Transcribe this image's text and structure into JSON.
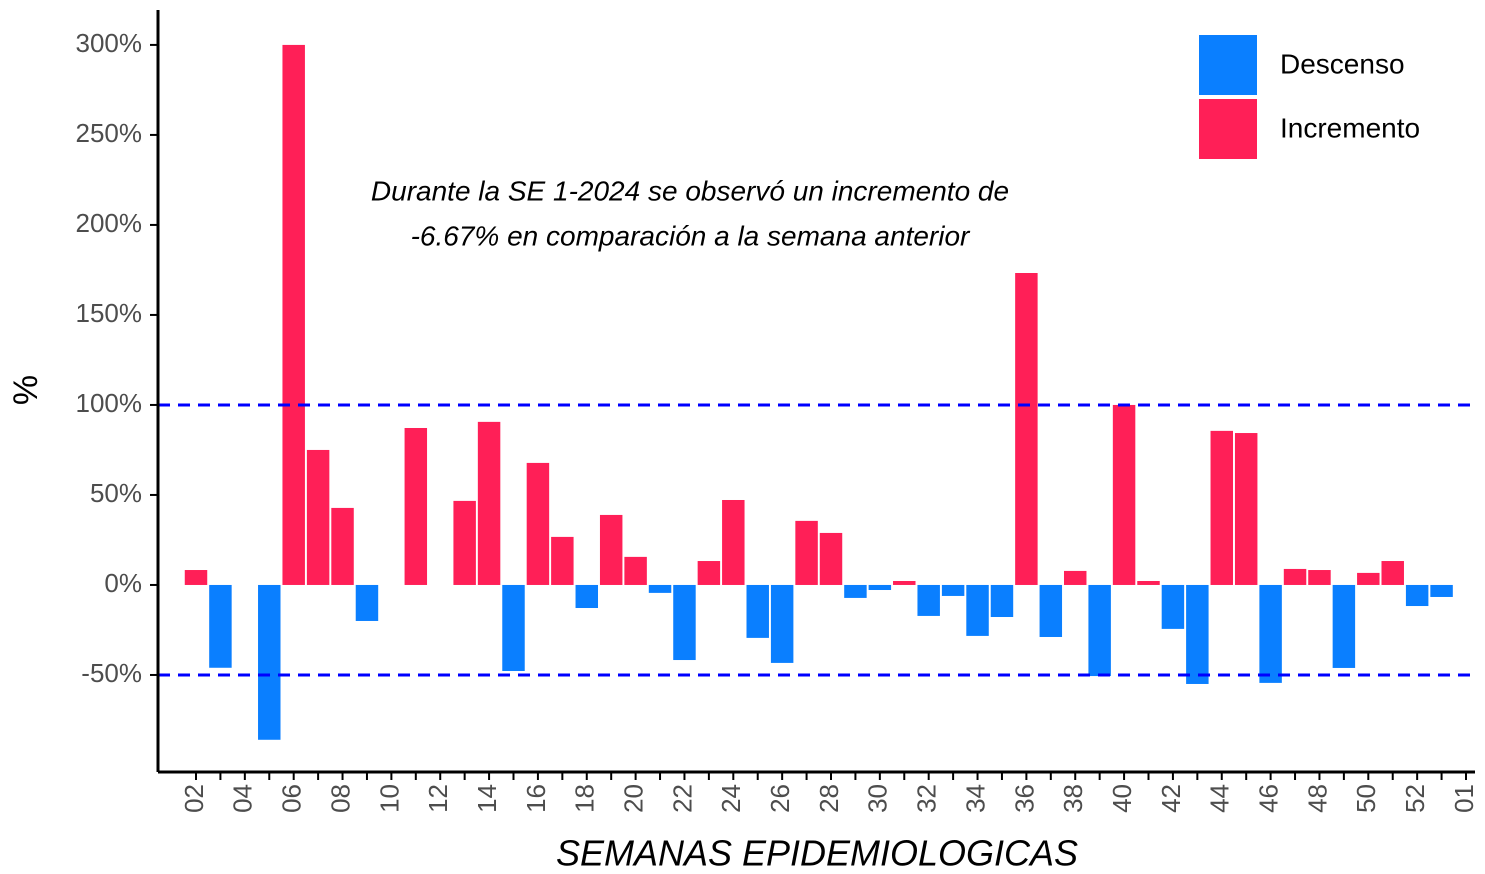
{
  "chart_data": {
    "type": "bar",
    "annotation": [
      "Durante la  SE 1-2024 se observó un incremento de",
      "-6.67% en comparación a la semana anterior"
    ],
    "x_label": "SEMANAS EPIDEMIOLOGICAS",
    "y_label": "%",
    "categories": [
      "02",
      null,
      "04",
      null,
      "06",
      null,
      "08",
      null,
      "10",
      null,
      "12",
      null,
      "14",
      null,
      "16",
      null,
      "18",
      null,
      "20",
      null,
      "22",
      null,
      "24",
      null,
      "26",
      null,
      "28",
      null,
      "30",
      null,
      "32",
      null,
      "34",
      null,
      "36",
      null,
      "38",
      null,
      "40",
      null,
      "42",
      null,
      "44",
      null,
      "46",
      null,
      "48",
      null,
      "50",
      null,
      "52",
      null,
      "01"
    ],
    "series": [
      {
        "name": "Descenso",
        "color": "#0A7FFF",
        "values": [
          null,
          -46,
          null,
          -86,
          null,
          null,
          null,
          -20,
          null,
          null,
          null,
          null,
          null,
          -47.8,
          null,
          null,
          -12.8,
          null,
          null,
          -4.4,
          -41.7,
          null,
          null,
          -29.4,
          -43.3,
          null,
          null,
          -7.2,
          -2.8,
          null,
          -17.2,
          -6.1,
          -28.3,
          -17.8,
          null,
          -28.9,
          null,
          -50.6,
          null,
          null,
          -24.4,
          -55,
          null,
          null,
          -54.4,
          null,
          null,
          -46.1,
          null,
          null,
          -11.7,
          -6.67,
          null
        ]
      },
      {
        "name": "Incremento",
        "color": "#FF1F57",
        "values": [
          8.3,
          null,
          0,
          null,
          300,
          75,
          42.8,
          null,
          0,
          87.2,
          0,
          46.7,
          90.6,
          null,
          67.8,
          26.7,
          null,
          38.9,
          15.6,
          null,
          null,
          13.3,
          47.2,
          null,
          null,
          35.6,
          28.9,
          null,
          null,
          2.2,
          null,
          null,
          null,
          null,
          173.3,
          null,
          7.8,
          null,
          100,
          2.2,
          null,
          null,
          85.6,
          84.4,
          null,
          8.9,
          8.3,
          null,
          6.7,
          13.3,
          null,
          null,
          null
        ]
      }
    ],
    "hlines": [
      100,
      -50
    ],
    "hline_color": "#0000FF",
    "ylim": [
      -103.9,
      319.4
    ],
    "yticks": [
      {
        "value": -50,
        "label": "-50%"
      },
      {
        "value": 0,
        "label": "0%"
      },
      {
        "value": 50,
        "label": "50%"
      },
      {
        "value": 100,
        "label": "100%"
      },
      {
        "value": 150,
        "label": "150%"
      },
      {
        "value": 200,
        "label": "200%"
      },
      {
        "value": 250,
        "label": "250%"
      },
      {
        "value": 300,
        "label": "300%"
      }
    ],
    "legend": "top-right"
  }
}
